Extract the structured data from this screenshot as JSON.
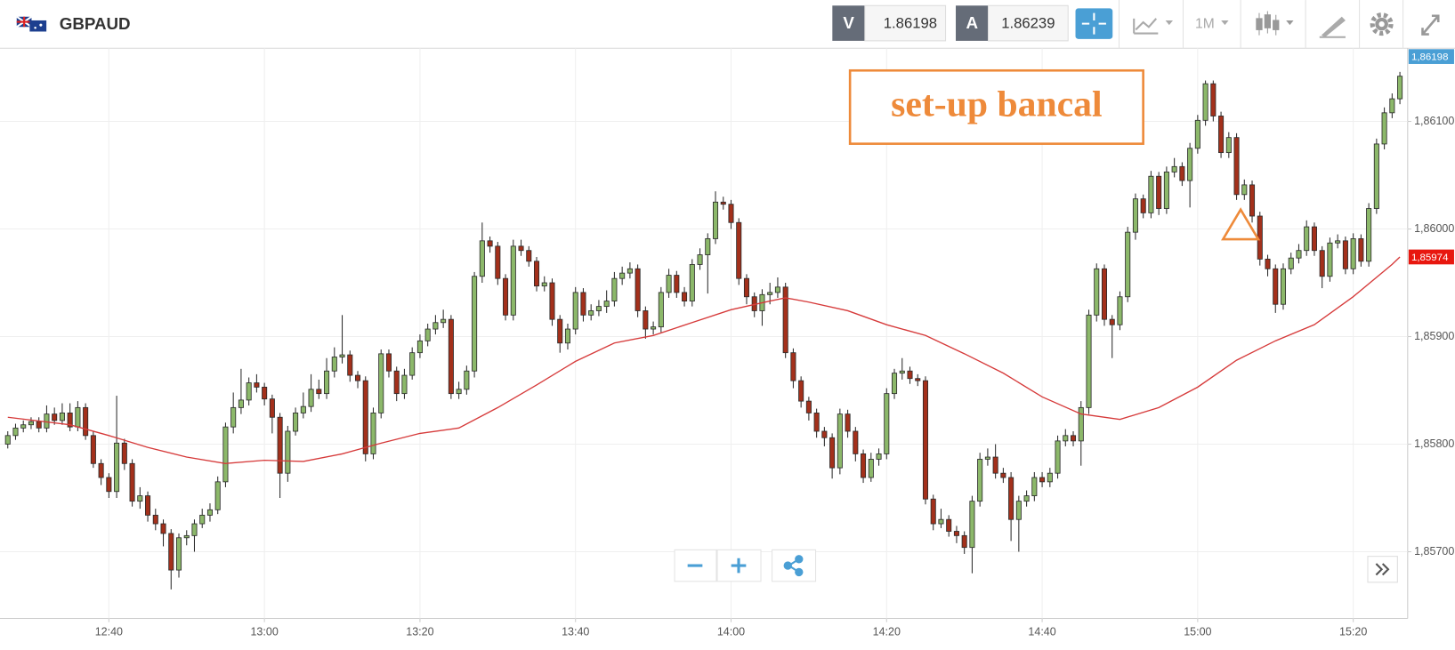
{
  "header": {
    "symbol": "GBPAUD",
    "bid_label": "V",
    "bid": 1.86198,
    "ask_label": "A",
    "ask": 1.86239,
    "timeframe": "1M"
  },
  "chart_data": {
    "type": "candlestick",
    "annotations": [
      "set-up bancal"
    ],
    "x": [
      "12:27",
      "12:28",
      "12:29",
      "12:30",
      "12:31",
      "12:32",
      "12:33",
      "12:34",
      "12:35",
      "12:36",
      "12:37",
      "12:38",
      "12:39",
      "12:40",
      "12:41",
      "12:42",
      "12:43",
      "12:44",
      "12:45",
      "12:46",
      "12:47",
      "12:48",
      "12:49",
      "12:50",
      "12:51",
      "12:52",
      "12:53",
      "12:54",
      "12:55",
      "12:56",
      "12:57",
      "12:58",
      "12:59",
      "13:00",
      "13:01",
      "13:02",
      "13:03",
      "13:04",
      "13:05",
      "13:06",
      "13:07",
      "13:08",
      "13:09",
      "13:10",
      "13:11",
      "13:12",
      "13:13",
      "13:14",
      "13:15",
      "13:16",
      "13:17",
      "13:18",
      "13:19",
      "13:20",
      "13:21",
      "13:22",
      "13:23",
      "13:24",
      "13:25",
      "13:26",
      "13:27",
      "13:28",
      "13:29",
      "13:30",
      "13:31",
      "13:32",
      "13:33",
      "13:34",
      "13:35",
      "13:36",
      "13:37",
      "13:38",
      "13:39",
      "13:40",
      "13:41",
      "13:42",
      "13:43",
      "13:44",
      "13:45",
      "13:46",
      "13:47",
      "13:48",
      "13:49",
      "13:50",
      "13:51",
      "13:52",
      "13:53",
      "13:54",
      "13:55",
      "13:56",
      "13:57",
      "13:58",
      "13:59",
      "14:00",
      "14:01",
      "14:02",
      "14:03",
      "14:04",
      "14:05",
      "14:06",
      "14:07",
      "14:08",
      "14:09",
      "14:10",
      "14:11",
      "14:12",
      "14:13",
      "14:14",
      "14:15",
      "14:16",
      "14:17",
      "14:18",
      "14:19",
      "14:20",
      "14:21",
      "14:22",
      "14:23",
      "14:24",
      "14:25",
      "14:26",
      "14:27",
      "14:28",
      "14:29",
      "14:30",
      "14:31",
      "14:32",
      "14:33",
      "14:34",
      "14:35",
      "14:36",
      "14:37",
      "14:38",
      "14:39",
      "14:40",
      "14:41",
      "14:42",
      "14:43",
      "14:44",
      "14:45",
      "14:46",
      "14:47",
      "14:48",
      "14:49",
      "14:50",
      "14:51",
      "14:52",
      "14:53",
      "14:54",
      "14:55",
      "14:56",
      "14:57",
      "14:58",
      "14:59",
      "15:00",
      "15:01",
      "15:02",
      "15:03",
      "15:04",
      "15:05",
      "15:06",
      "15:07",
      "15:08",
      "15:09",
      "15:10",
      "15:11",
      "15:12",
      "15:13",
      "15:14",
      "15:15",
      "15:16",
      "15:17",
      "15:18",
      "15:19",
      "15:20",
      "15:21",
      "15:22",
      "15:23",
      "15:24",
      "15:25",
      "15:26"
    ],
    "open": [
      1.858,
      1.85808,
      1.85815,
      1.85818,
      1.85821,
      1.85815,
      1.85828,
      1.85822,
      1.85829,
      1.85816,
      1.85834,
      1.85808,
      1.85782,
      1.85769,
      1.85756,
      1.85801,
      1.85782,
      1.85747,
      1.85752,
      1.85734,
      1.85726,
      1.85717,
      1.85683,
      1.85713,
      1.85715,
      1.85726,
      1.85734,
      1.85739,
      1.85765,
      1.85816,
      1.85834,
      1.85841,
      1.85857,
      1.85853,
      1.85842,
      1.85825,
      1.85773,
      1.85812,
      1.85829,
      1.85835,
      1.85851,
      1.85847,
      1.85868,
      1.85881,
      1.85883,
      1.85864,
      1.85859,
      1.85791,
      1.85829,
      1.85884,
      1.85868,
      1.85847,
      1.85864,
      1.85885,
      1.85896,
      1.85907,
      1.85913,
      1.85916,
      1.85847,
      1.85851,
      1.85868,
      1.85956,
      1.85989,
      1.85984,
      1.85954,
      1.8592,
      1.85984,
      1.8598,
      1.8597,
      1.85947,
      1.8595,
      1.85916,
      1.85894,
      1.85907,
      1.85941,
      1.8592,
      1.85924,
      1.85928,
      1.85933,
      1.85954,
      1.85959,
      1.85963,
      1.85924,
      1.85907,
      1.85909,
      1.85941,
      1.85957,
      1.85941,
      1.85933,
      1.85967,
      1.85976,
      1.85991,
      1.86025,
      1.86023,
      1.86006,
      1.85954,
      1.85937,
      1.85924,
      1.85939,
      1.85941,
      1.85946,
      1.85885,
      1.85859,
      1.8584,
      1.85829,
      1.85812,
      1.85806,
      1.85778,
      1.85828,
      1.85812,
      1.85791,
      1.85769,
      1.85786,
      1.85791,
      1.85847,
      1.85866,
      1.85868,
      1.85861,
      1.85859,
      1.85749,
      1.85726,
      1.8573,
      1.85719,
      1.85715,
      1.85704,
      1.85747,
      1.85786,
      1.85788,
      1.85773,
      1.85769,
      1.8573,
      1.85747,
      1.85752,
      1.85769,
      1.85765,
      1.85773,
      1.85803,
      1.85808,
      1.85803,
      1.85834,
      1.8592,
      1.85963,
      1.85916,
      1.85911,
      1.85937,
      1.85997,
      1.86028,
      1.86015,
      1.86049,
      1.86019,
      1.86053,
      1.86058,
      1.86045,
      1.86075,
      1.86101,
      1.86135,
      1.86105,
      1.86071,
      1.86085,
      1.86032,
      1.86041,
      1.86012,
      1.85972,
      1.85963,
      1.8593,
      1.85963,
      1.85973,
      1.8598,
      1.86002,
      1.8598,
      1.85956,
      1.85987,
      1.85989,
      1.85963,
      1.85991,
      1.8597,
      1.86019,
      1.86079,
      1.86108,
      1.86121
    ],
    "high": [
      1.85812,
      1.85819,
      1.85822,
      1.85825,
      1.85825,
      1.85836,
      1.85834,
      1.85838,
      1.85838,
      1.8584,
      1.85838,
      1.85812,
      1.85786,
      1.85773,
      1.85845,
      1.85805,
      1.85786,
      1.8576,
      1.85756,
      1.8574,
      1.8573,
      1.85721,
      1.85717,
      1.8572,
      1.8573,
      1.8574,
      1.85745,
      1.8577,
      1.8582,
      1.85848,
      1.8587,
      1.85862,
      1.85865,
      1.85857,
      1.85846,
      1.85829,
      1.85817,
      1.85834,
      1.85848,
      1.85865,
      1.8586,
      1.8588,
      1.8589,
      1.8592,
      1.85887,
      1.85868,
      1.85863,
      1.85834,
      1.85888,
      1.85888,
      1.85872,
      1.8587,
      1.8589,
      1.85902,
      1.85912,
      1.8592,
      1.85925,
      1.8592,
      1.85858,
      1.85873,
      1.8596,
      1.86006,
      1.85993,
      1.85988,
      1.85958,
      1.8599,
      1.8599,
      1.85984,
      1.85974,
      1.85956,
      1.85954,
      1.8592,
      1.85912,
      1.85946,
      1.85945,
      1.8593,
      1.85934,
      1.85943,
      1.8596,
      1.85965,
      1.85969,
      1.85967,
      1.85928,
      1.85914,
      1.85946,
      1.85963,
      1.85961,
      1.85946,
      1.85972,
      1.85982,
      1.85996,
      1.86035,
      1.8603,
      1.86027,
      1.8601,
      1.85958,
      1.85941,
      1.85944,
      1.8595,
      1.85955,
      1.8595,
      1.85889,
      1.85863,
      1.85844,
      1.85833,
      1.85816,
      1.8581,
      1.85833,
      1.85832,
      1.85816,
      1.85795,
      1.85792,
      1.85796,
      1.85852,
      1.8587,
      1.8588,
      1.85872,
      1.85865,
      1.85863,
      1.85753,
      1.8574,
      1.85734,
      1.85724,
      1.85719,
      1.85752,
      1.85792,
      1.85796,
      1.858,
      1.85778,
      1.85774,
      1.85752,
      1.85757,
      1.85774,
      1.85774,
      1.85778,
      1.85808,
      1.85814,
      1.85812,
      1.8584,
      1.85925,
      1.85968,
      1.85967,
      1.8592,
      1.85942,
      1.86002,
      1.86033,
      1.86032,
      1.86054,
      1.86053,
      1.86058,
      1.86066,
      1.86062,
      1.8608,
      1.86106,
      1.86138,
      1.86138,
      1.86109,
      1.8609,
      1.86089,
      1.86046,
      1.86045,
      1.86016,
      1.85976,
      1.85967,
      1.85968,
      1.85978,
      1.85986,
      1.86008,
      1.86006,
      1.85984,
      1.85992,
      1.85995,
      1.85993,
      1.85996,
      1.85995,
      1.86024,
      1.86084,
      1.86113,
      1.86126,
      1.86146
    ],
    "low": [
      1.85796,
      1.85804,
      1.85811,
      1.85814,
      1.85811,
      1.85811,
      1.85818,
      1.85818,
      1.85812,
      1.85812,
      1.85804,
      1.85778,
      1.85762,
      1.8575,
      1.8575,
      1.85776,
      1.85742,
      1.8574,
      1.85728,
      1.8572,
      1.85705,
      1.85665,
      1.85676,
      1.85706,
      1.857,
      1.85722,
      1.85728,
      1.85735,
      1.8576,
      1.8581,
      1.85828,
      1.85836,
      1.85848,
      1.85836,
      1.8581,
      1.8575,
      1.85765,
      1.85808,
      1.85824,
      1.8583,
      1.85842,
      1.85842,
      1.85862,
      1.85875,
      1.85858,
      1.85852,
      1.85784,
      1.85786,
      1.85824,
      1.85862,
      1.8584,
      1.85842,
      1.8586,
      1.8588,
      1.85891,
      1.85902,
      1.85908,
      1.85842,
      1.85842,
      1.85846,
      1.85862,
      1.8595,
      1.85978,
      1.85948,
      1.85915,
      1.85915,
      1.85975,
      1.85965,
      1.85942,
      1.85942,
      1.8591,
      1.85885,
      1.85888,
      1.85902,
      1.85914,
      1.85915,
      1.85919,
      1.85922,
      1.85928,
      1.85948,
      1.85954,
      1.85918,
      1.85898,
      1.85902,
      1.85904,
      1.85936,
      1.85936,
      1.85928,
      1.85928,
      1.85962,
      1.8594,
      1.85986,
      1.86018,
      1.86,
      1.85948,
      1.8593,
      1.85918,
      1.8591,
      1.8593,
      1.85936,
      1.8588,
      1.85852,
      1.85834,
      1.85822,
      1.85806,
      1.85798,
      1.85768,
      1.85772,
      1.85806,
      1.85784,
      1.85764,
      1.85765,
      1.8578,
      1.85786,
      1.85842,
      1.8586,
      1.85856,
      1.85854,
      1.85744,
      1.8572,
      1.85722,
      1.85714,
      1.85708,
      1.85698,
      1.8568,
      1.85742,
      1.8578,
      1.85768,
      1.85764,
      1.8571,
      1.857,
      1.85742,
      1.85747,
      1.8576,
      1.8576,
      1.85768,
      1.85798,
      1.85798,
      1.8578,
      1.85828,
      1.85914,
      1.8591,
      1.8588,
      1.85906,
      1.85932,
      1.8599,
      1.8601,
      1.8601,
      1.86013,
      1.86014,
      1.86048,
      1.8604,
      1.8602,
      1.8607,
      1.86096,
      1.861,
      1.86066,
      1.86066,
      1.86027,
      1.86027,
      1.86006,
      1.85966,
      1.85956,
      1.85922,
      1.85925,
      1.85958,
      1.85968,
      1.85975,
      1.85975,
      1.85945,
      1.85951,
      1.85982,
      1.85958,
      1.85958,
      1.85965,
      1.85965,
      1.86014,
      1.86074,
      1.86103,
      1.86116
    ],
    "close": [
      1.85808,
      1.85815,
      1.85818,
      1.85821,
      1.85815,
      1.85828,
      1.85822,
      1.85829,
      1.85816,
      1.85834,
      1.85808,
      1.85782,
      1.85769,
      1.85756,
      1.85801,
      1.85782,
      1.85747,
      1.85752,
      1.85734,
      1.85726,
      1.85717,
      1.85683,
      1.85713,
      1.85715,
      1.85726,
      1.85734,
      1.85739,
      1.85765,
      1.85816,
      1.85834,
      1.85841,
      1.85857,
      1.85853,
      1.85842,
      1.85825,
      1.85773,
      1.85812,
      1.85829,
      1.85835,
      1.85851,
      1.85847,
      1.85868,
      1.85881,
      1.85883,
      1.85864,
      1.85859,
      1.85791,
      1.85829,
      1.85884,
      1.85868,
      1.85847,
      1.85864,
      1.85885,
      1.85896,
      1.85907,
      1.85913,
      1.85916,
      1.85847,
      1.85851,
      1.85868,
      1.85956,
      1.85989,
      1.85984,
      1.85954,
      1.8592,
      1.85984,
      1.8598,
      1.8597,
      1.85947,
      1.8595,
      1.85916,
      1.85894,
      1.85907,
      1.85941,
      1.8592,
      1.85924,
      1.85928,
      1.85933,
      1.85954,
      1.85959,
      1.85963,
      1.85924,
      1.85907,
      1.85909,
      1.85941,
      1.85957,
      1.85941,
      1.85933,
      1.85967,
      1.85976,
      1.85991,
      1.86025,
      1.86023,
      1.86006,
      1.85954,
      1.85937,
      1.85924,
      1.85939,
      1.85941,
      1.85946,
      1.85885,
      1.85859,
      1.8584,
      1.85829,
      1.85812,
      1.85806,
      1.85778,
      1.85828,
      1.85812,
      1.85791,
      1.85769,
      1.85786,
      1.85791,
      1.85847,
      1.85866,
      1.85868,
      1.85861,
      1.85859,
      1.85749,
      1.85726,
      1.8573,
      1.85719,
      1.85715,
      1.85704,
      1.85747,
      1.85786,
      1.85788,
      1.85773,
      1.85769,
      1.8573,
      1.85747,
      1.85752,
      1.85769,
      1.85765,
      1.85773,
      1.85803,
      1.85808,
      1.85803,
      1.85834,
      1.8592,
      1.85963,
      1.85916,
      1.85911,
      1.85937,
      1.85997,
      1.86028,
      1.86015,
      1.86049,
      1.86019,
      1.86053,
      1.86058,
      1.86045,
      1.86075,
      1.86101,
      1.86135,
      1.86105,
      1.86071,
      1.86085,
      1.86032,
      1.86041,
      1.86012,
      1.85972,
      1.85963,
      1.8593,
      1.85963,
      1.85973,
      1.8598,
      1.86002,
      1.8598,
      1.85956,
      1.85987,
      1.85989,
      1.85963,
      1.85991,
      1.8597,
      1.86019,
      1.86079,
      1.86108,
      1.86121,
      1.86142
    ],
    "up_color": "#8cb86a",
    "down_color": "#a3301b",
    "ma": {
      "x": [
        "12:27",
        "12:35",
        "12:40",
        "12:45",
        "12:50",
        "12:55",
        "13:00",
        "13:05",
        "13:10",
        "13:15",
        "13:20",
        "13:25",
        "13:30",
        "13:35",
        "13:40",
        "13:45",
        "13:50",
        "13:55",
        "14:00",
        "14:05",
        "14:07",
        "14:10",
        "14:15",
        "14:20",
        "14:25",
        "14:30",
        "14:35",
        "14:40",
        "14:45",
        "14:50",
        "14:55",
        "15:00",
        "15:05",
        "15:10",
        "15:15",
        "15:20",
        "15:25",
        "15:26"
      ],
      "values": [
        1.85825,
        1.85818,
        1.85808,
        1.85797,
        1.85788,
        1.85782,
        1.85785,
        1.85784,
        1.85791,
        1.85801,
        1.8581,
        1.85815,
        1.85834,
        1.85855,
        1.85877,
        1.85894,
        1.85901,
        1.85913,
        1.85925,
        1.85933,
        1.85936,
        1.85932,
        1.85924,
        1.85911,
        1.85901,
        1.85884,
        1.85866,
        1.85844,
        1.85828,
        1.85823,
        1.85834,
        1.85853,
        1.85878,
        1.85896,
        1.85911,
        1.85937,
        1.85967,
        1.85974
      ],
      "color": "#d63a3a"
    },
    "price_markers": [
      {
        "value": 1.86198,
        "label": "1,86198",
        "color": "#4a9fd5"
      },
      {
        "value": 1.85974,
        "label": "1,85974",
        "color": "#e8170f"
      }
    ],
    "xlim": [
      "12:26",
      "15:27"
    ],
    "xticks": [
      "12:40",
      "13:00",
      "13:20",
      "13:40",
      "14:00",
      "14:20",
      "14:40",
      "15:00",
      "15:20"
    ],
    "ylim": [
      1.85638,
      1.86168
    ],
    "yticks": [
      {
        "value": 1.857,
        "label": "1,85700"
      },
      {
        "value": 1.858,
        "label": "1,85800"
      },
      {
        "value": 1.859,
        "label": "1,85900"
      },
      {
        "value": 1.86,
        "label": "1,86000"
      },
      {
        "value": 1.861,
        "label": "1,86100"
      }
    ],
    "grid": true
  }
}
